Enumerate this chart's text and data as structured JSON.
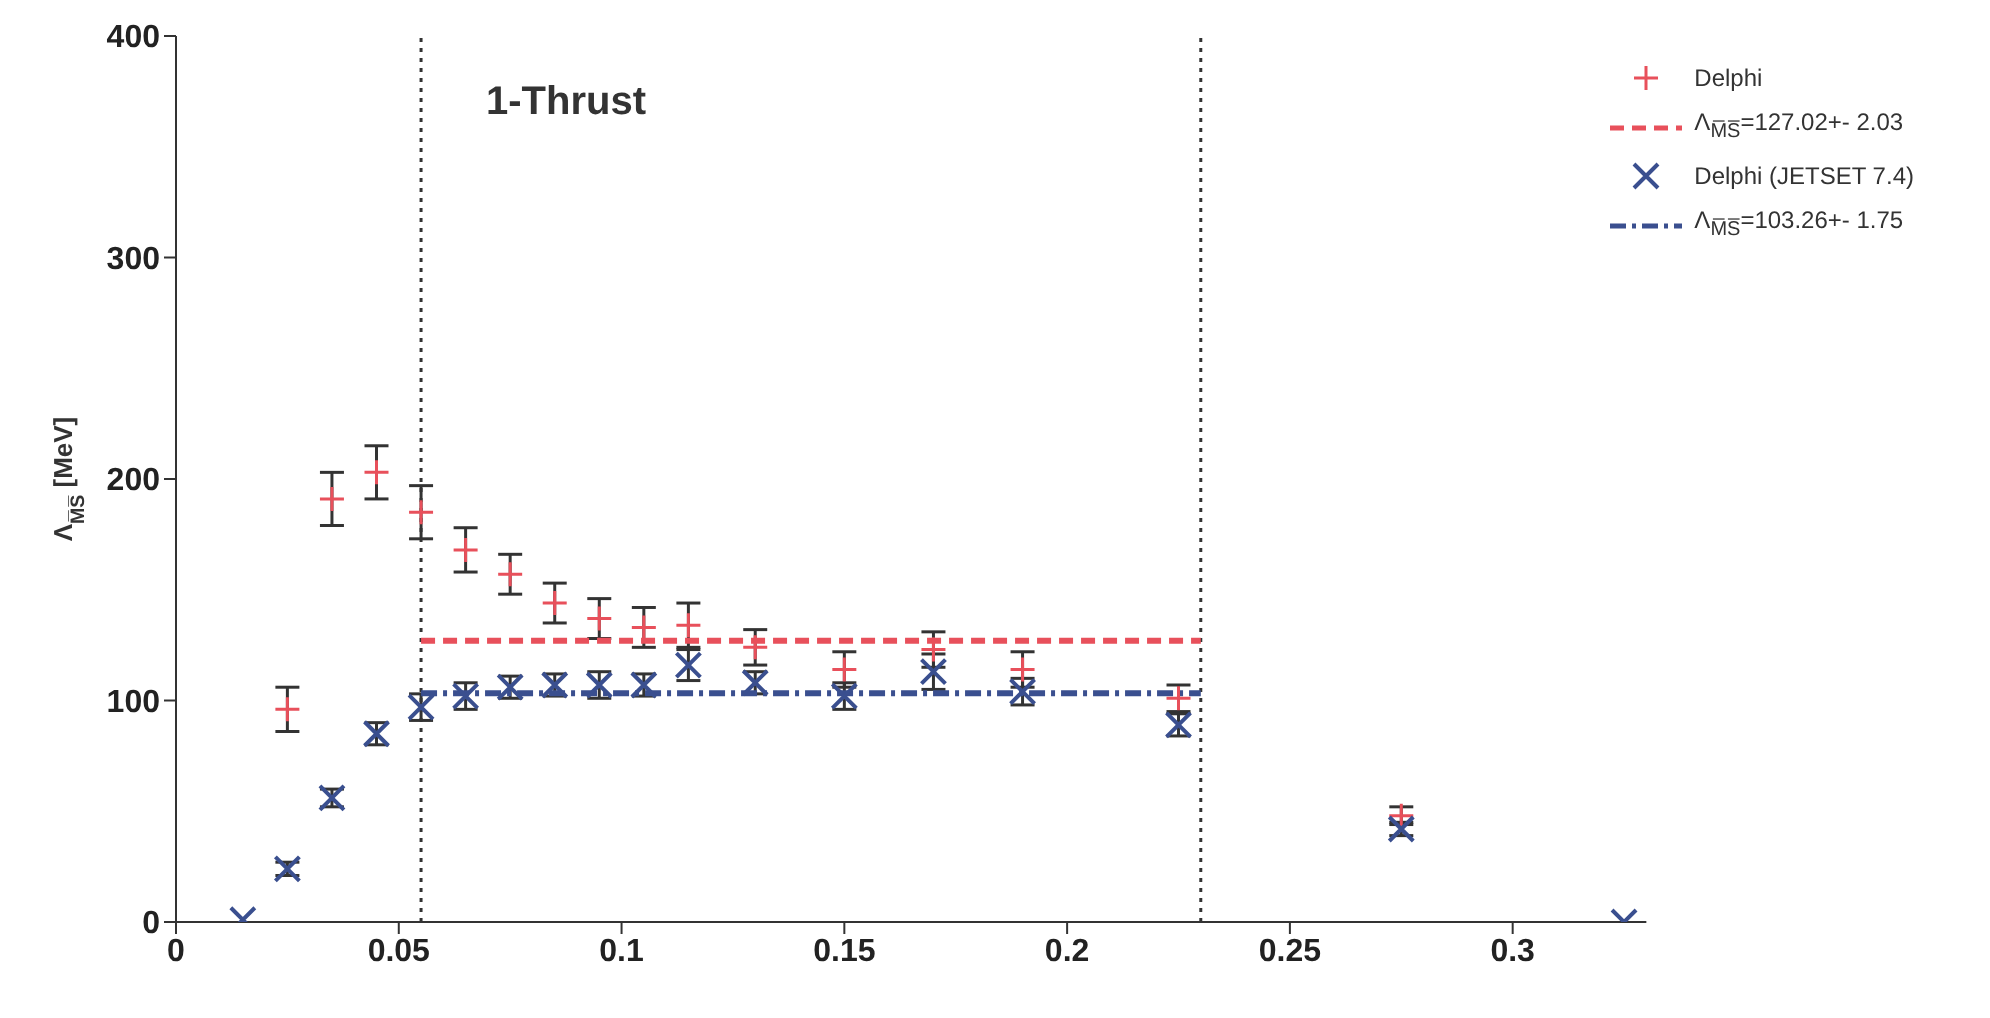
{
  "chart_data": {
    "type": "scatter",
    "title": "1-Thrust",
    "ylabel": "Λ$_{M̅S̅}$ [MeV]",
    "xlim": [
      0,
      0.33
    ],
    "xticks": [
      0,
      0.05,
      0.1,
      0.15,
      0.2,
      0.25,
      0.3
    ],
    "ylim": [
      0,
      400
    ],
    "yticks": [
      0,
      100,
      200,
      300,
      400
    ],
    "legend": "top right",
    "ref_lines": [
      {
        "axis": "x",
        "value": 0.055,
        "line_style": "dotted",
        "color": "#333333"
      },
      {
        "axis": "x",
        "value": 0.23,
        "line_style": "dotted",
        "color": "#333333"
      }
    ],
    "series": [
      {
        "name": "Delphi",
        "marker": "plus",
        "color": "#e8505b",
        "x": [
          0.025,
          0.035,
          0.045,
          0.055,
          0.065,
          0.075,
          0.085,
          0.095,
          0.105,
          0.115,
          0.13,
          0.15,
          0.17,
          0.19,
          0.225,
          0.275
        ],
        "values": [
          96,
          191,
          203,
          185,
          168,
          157,
          144,
          137,
          133,
          134,
          124,
          114,
          123,
          114,
          101,
          48
        ],
        "errors": [
          10,
          12,
          12,
          12,
          10,
          9,
          9,
          9,
          9,
          10,
          8,
          8,
          8,
          8,
          6,
          4
        ]
      },
      {
        "name": "Λ$_{M̅S̅}$=127.02+- 2.03",
        "type": "line",
        "line_style": "dashed",
        "color": "#e8505b",
        "x": [
          0.055,
          0.23
        ],
        "values": [
          127.02,
          127.02
        ]
      },
      {
        "name": "Delphi (JETSET 7.4)",
        "marker": "cross",
        "color": "#3a4f8f",
        "x": [
          0.015,
          0.025,
          0.035,
          0.045,
          0.055,
          0.065,
          0.075,
          0.085,
          0.095,
          0.105,
          0.115,
          0.13,
          0.15,
          0.17,
          0.19,
          0.225,
          0.275,
          0.325
        ],
        "values": [
          1,
          24,
          56,
          85,
          97,
          102,
          106,
          107,
          107,
          107,
          116,
          108,
          102,
          113,
          104,
          89,
          42,
          0
        ],
        "errors": [
          null,
          3,
          4,
          5,
          6,
          6,
          5,
          5,
          6,
          5,
          7,
          5,
          6,
          8,
          6,
          5,
          3,
          null
        ]
      },
      {
        "name": "Λ$_{M̅S̅}$=103.26+- 1.75",
        "type": "line",
        "line_style": "dashdot",
        "color": "#3a4f8f",
        "x": [
          0.055,
          0.23
        ],
        "values": [
          103.26,
          103.26
        ]
      }
    ]
  }
}
